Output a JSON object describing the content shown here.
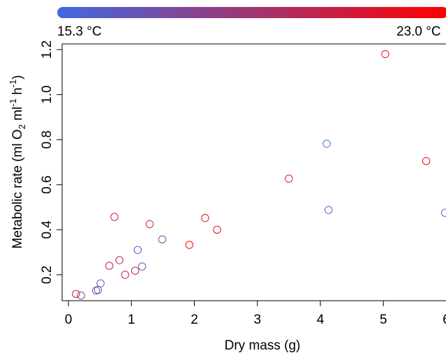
{
  "chart_data": {
    "type": "scatter",
    "xlabel": "Dry mass (g)",
    "ylabel": {
      "pre": "Metabolic rate (ml O",
      "sub": "2",
      "mid1": " ml",
      "sup1": "-1",
      "mid2": " h",
      "sup2": "-1",
      "post": ")"
    },
    "xlim": [
      -0.1,
      6.05
    ],
    "ylim": [
      0.085,
      1.225
    ],
    "xticks": [
      0,
      1,
      2,
      3,
      4,
      5,
      6
    ],
    "yticks": [
      0.2,
      0.4,
      0.6,
      0.8,
      1.0,
      1.2
    ],
    "ytick_labels": [
      "0.2",
      "0.4",
      "0.6",
      "0.8",
      "1.0",
      "1.2"
    ],
    "color_legend": {
      "min_label": "15.3 °C",
      "max_label": "23.0 °C",
      "min_value": 15.3,
      "max_value": 23.0,
      "min_color": "#4169e1",
      "max_color": "#ff0000"
    },
    "points": [
      {
        "x": 0.12,
        "y": 0.115,
        "temp": 21.0
      },
      {
        "x": 0.2,
        "y": 0.108,
        "temp": 17.5
      },
      {
        "x": 0.44,
        "y": 0.13,
        "temp": 19.0
      },
      {
        "x": 0.47,
        "y": 0.133,
        "temp": 16.5
      },
      {
        "x": 0.51,
        "y": 0.162,
        "temp": 16.0
      },
      {
        "x": 0.65,
        "y": 0.24,
        "temp": 21.5
      },
      {
        "x": 0.73,
        "y": 0.457,
        "temp": 21.0
      },
      {
        "x": 0.81,
        "y": 0.265,
        "temp": 20.5
      },
      {
        "x": 0.9,
        "y": 0.2,
        "temp": 21.5
      },
      {
        "x": 1.06,
        "y": 0.218,
        "temp": 20.5
      },
      {
        "x": 1.1,
        "y": 0.31,
        "temp": 16.5
      },
      {
        "x": 1.17,
        "y": 0.237,
        "temp": 16.5
      },
      {
        "x": 1.29,
        "y": 0.425,
        "temp": 21.0
      },
      {
        "x": 1.49,
        "y": 0.357,
        "temp": 17.0
      },
      {
        "x": 1.92,
        "y": 0.333,
        "temp": 23.0
      },
      {
        "x": 2.17,
        "y": 0.452,
        "temp": 22.0
      },
      {
        "x": 2.36,
        "y": 0.4,
        "temp": 21.5
      },
      {
        "x": 3.5,
        "y": 0.627,
        "temp": 21.5
      },
      {
        "x": 4.1,
        "y": 0.782,
        "temp": 15.3
      },
      {
        "x": 4.13,
        "y": 0.488,
        "temp": 16.0
      },
      {
        "x": 5.03,
        "y": 1.18,
        "temp": 22.0
      },
      {
        "x": 5.68,
        "y": 0.705,
        "temp": 22.0
      },
      {
        "x": 5.98,
        "y": 0.475,
        "temp": 16.5
      }
    ]
  }
}
